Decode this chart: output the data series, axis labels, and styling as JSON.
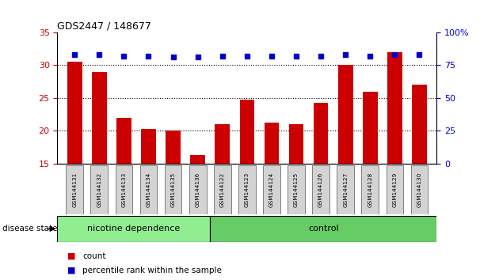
{
  "title": "GDS2447 / 148677",
  "categories": [
    "GSM144131",
    "GSM144132",
    "GSM144133",
    "GSM144134",
    "GSM144135",
    "GSM144136",
    "GSM144122",
    "GSM144123",
    "GSM144124",
    "GSM144125",
    "GSM144126",
    "GSM144127",
    "GSM144128",
    "GSM144129",
    "GSM144130"
  ],
  "counts": [
    30.5,
    29.0,
    22.0,
    20.3,
    20.1,
    16.3,
    21.0,
    24.8,
    21.3,
    21.0,
    24.3,
    30.0,
    26.0,
    32.0,
    27.0
  ],
  "percentiles": [
    83,
    83,
    82,
    82,
    81,
    81,
    82,
    82,
    82,
    82,
    82,
    83,
    82,
    83,
    83
  ],
  "ylim_left": [
    15,
    35
  ],
  "ylim_right": [
    0,
    100
  ],
  "yticks_left": [
    15,
    20,
    25,
    30,
    35
  ],
  "yticks_right": [
    0,
    25,
    50,
    75,
    100
  ],
  "bar_color": "#cc0000",
  "dot_color": "#0000cc",
  "label_bg": "#d3d3d3",
  "nicotine_color": "#90ee90",
  "control_color": "#66cc66",
  "nicotine_label": "nicotine dependence",
  "control_label": "control",
  "disease_state_label": "disease state",
  "legend_count": "count",
  "legend_percentile": "percentile rank within the sample",
  "bar_width": 0.6,
  "figsize": [
    6.3,
    3.54
  ],
  "dpi": 100,
  "n_nicotine": 6,
  "n_control": 9
}
